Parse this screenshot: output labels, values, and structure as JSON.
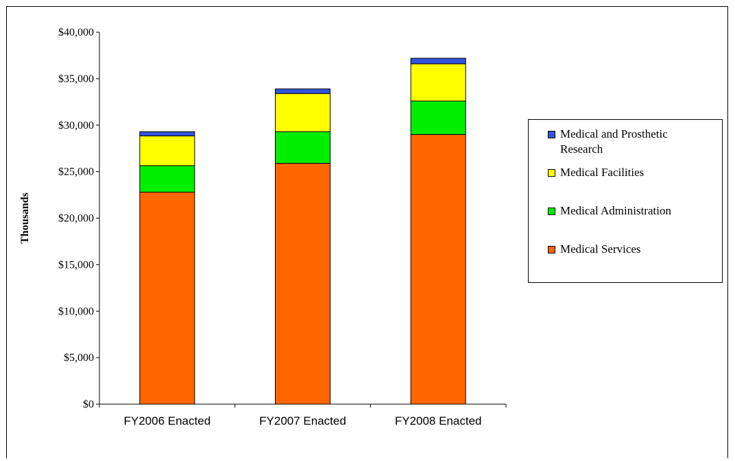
{
  "chart_data": {
    "type": "bar",
    "stacked": true,
    "ylabel": "Thousands",
    "xlabel": "",
    "ylim": [
      0,
      40000
    ],
    "ytick_step": 5000,
    "ytick_labels": [
      "$0",
      "$5,000",
      "$10,000",
      "$15,000",
      "$20,000",
      "$25,000",
      "$30,000",
      "$35,000",
      "$40,000"
    ],
    "categories": [
      "FY2006 Enacted",
      "FY2007 Enacted",
      "FY2008 Enacted"
    ],
    "series": [
      {
        "name": "Medical Services",
        "color": "#ff6600",
        "values": [
          22800,
          25900,
          29000
        ]
      },
      {
        "name": "Medical Administration",
        "color": "#00ee00",
        "values": [
          2850,
          3400,
          3600
        ]
      },
      {
        "name": "Medical Facilities",
        "color": "#ffff00",
        "values": [
          3200,
          4100,
          4000
        ]
      },
      {
        "name": "Medical and Prosthetic Research",
        "color": "#3355dd",
        "values": [
          450,
          500,
          600
        ]
      }
    ],
    "legend": {
      "position": "right",
      "order": [
        "Medical and Prosthetic Research",
        "Medical Facilities",
        "Medical Administration",
        "Medical Services"
      ]
    },
    "grid": false
  }
}
